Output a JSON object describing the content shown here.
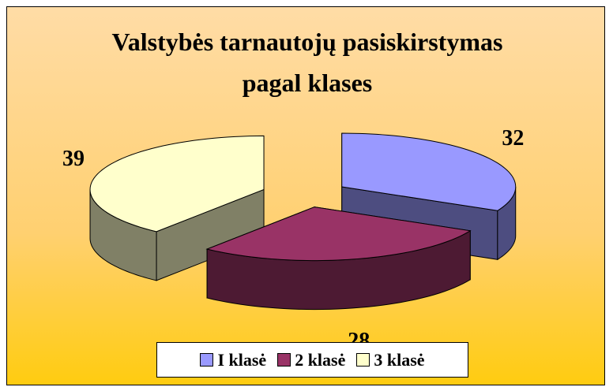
{
  "chart_data": {
    "type": "pie3d",
    "title": "Valstybės tarnautojų pasiskirstymas pagal klases",
    "categories": [
      "I klasė",
      "2 klasė",
      "3 klasė"
    ],
    "values": [
      32,
      28,
      39
    ],
    "colors": [
      "#9999ff",
      "#993366",
      "#ffffcc"
    ],
    "legend": "bottom"
  }
}
